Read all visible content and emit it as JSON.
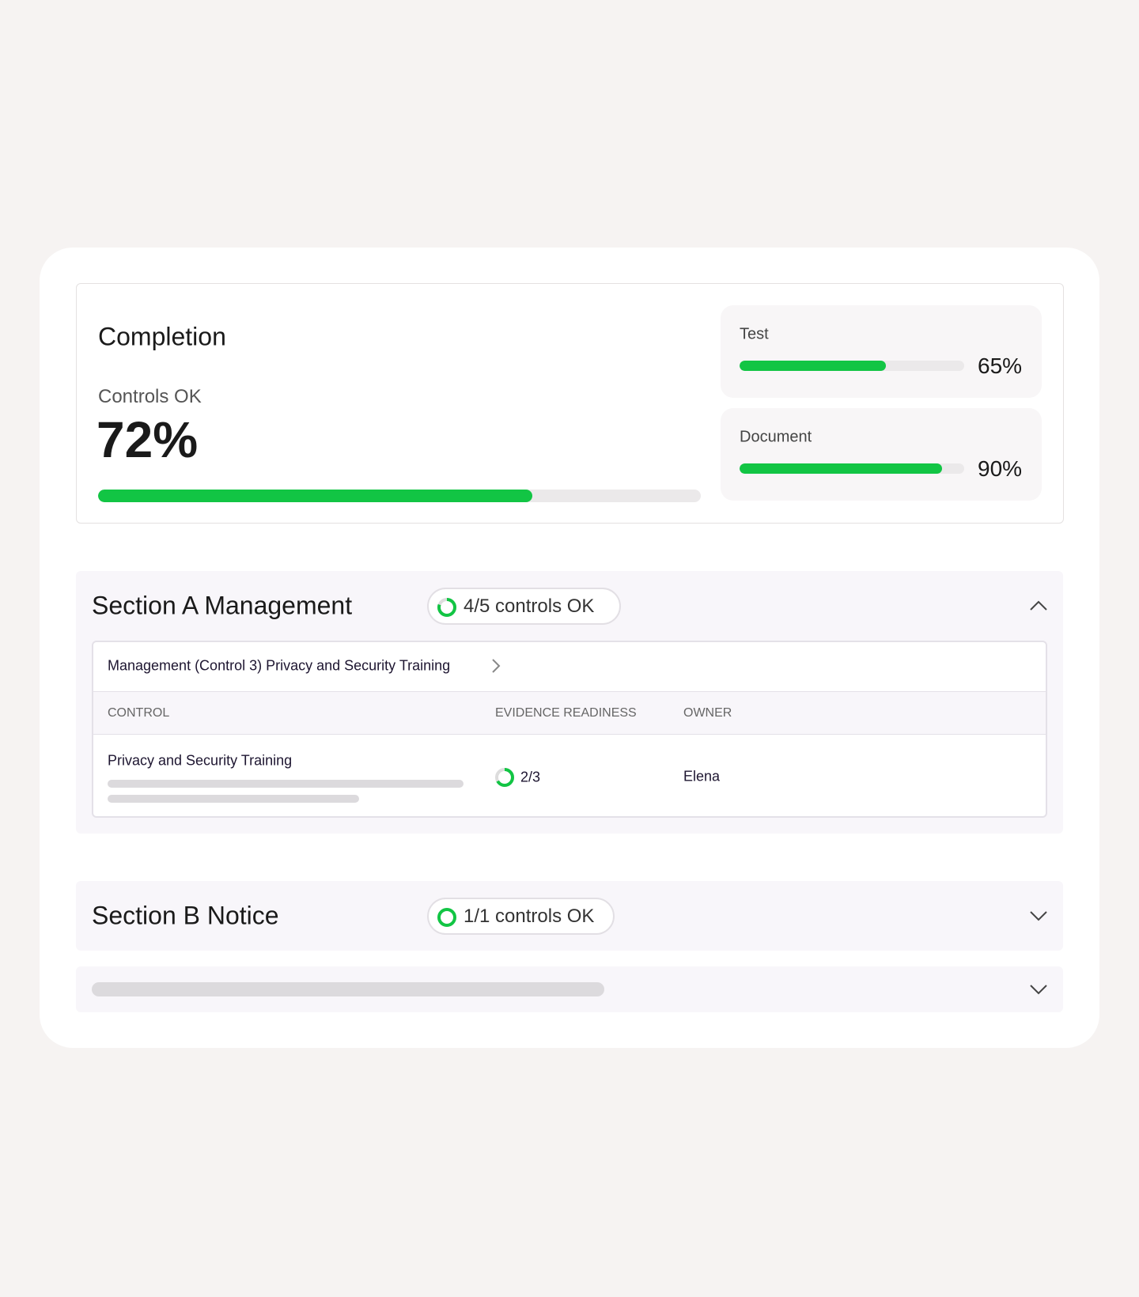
{
  "completion": {
    "title": "Completion",
    "label": "Controls OK",
    "value": 72,
    "value_label": "72%",
    "breakdown": [
      {
        "label": "Test",
        "value": 65,
        "value_label": "65%"
      },
      {
        "label": "Document",
        "value": 90,
        "value_label": "90%"
      }
    ]
  },
  "sections": [
    {
      "title": "Section A Management",
      "status": "4/5 controls OK",
      "link": "Management (Control 3) Privacy and Security Training",
      "table": {
        "columns": [
          "CONTROL",
          "EVIDENCE READINESS",
          "OWNER"
        ],
        "rows": [
          [
            "Privacy and Security Training",
            "2/3",
            "Elena"
          ]
        ]
      }
    },
    {
      "title": "Section B Notice",
      "status": "1/1 controls OK"
    }
  ]
}
